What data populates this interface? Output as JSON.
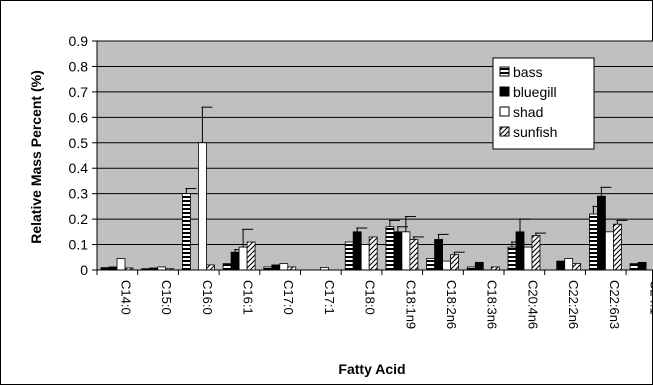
{
  "chart_data": {
    "type": "bar",
    "title": "",
    "xlabel": "Fatty Acid",
    "ylabel": "Relative Mass Percent (%)",
    "ylim": [
      0,
      0.9
    ],
    "yticks": [
      "0",
      "0.1",
      "0.2",
      "0.3",
      "0.4",
      "0.5",
      "0.6",
      "0.7",
      "0.8",
      "0.9"
    ],
    "grid": "horizontal",
    "legend_position": "top-right",
    "categories": [
      "C14:0",
      "C15:0",
      "C16:0",
      "C16:1",
      "C17:0",
      "C17:1",
      "C18:0",
      "C18:1n9",
      "C18:2n6",
      "C18:3n6",
      "C20:4n6",
      "C22:2n6",
      "C22:6n3",
      "C24:1"
    ],
    "series": [
      {
        "name": "bass",
        "values": [
          0.01,
          0.005,
          0.3,
          0.025,
          0.012,
          0.0,
          0.11,
          0.17,
          0.045,
          0.012,
          0.09,
          0.0,
          0.22,
          0.025
        ],
        "errors": [
          0.0,
          0.0,
          0.02,
          0.0,
          0.0,
          0.0,
          0.0,
          0.025,
          0.0,
          0.0,
          0.02,
          0.0,
          0.03,
          0.0
        ]
      },
      {
        "name": "bluegill",
        "values": [
          0.012,
          0.008,
          0.0,
          0.07,
          0.02,
          0.0,
          0.15,
          0.15,
          0.12,
          0.03,
          0.15,
          0.035,
          0.29,
          0.03
        ],
        "errors": [
          0.0,
          0.0,
          0.0,
          0.01,
          0.0,
          0.0,
          0.015,
          0.02,
          0.02,
          0.0,
          0.05,
          0.0,
          0.035,
          0.0
        ]
      },
      {
        "name": "shad",
        "values": [
          0.045,
          0.012,
          0.5,
          0.09,
          0.025,
          0.01,
          0.1,
          0.15,
          0.035,
          0.0,
          0.09,
          0.045,
          0.15,
          0.0
        ],
        "errors": [
          0.0,
          0.0,
          0.14,
          0.07,
          0.0,
          0.0,
          0.0,
          0.06,
          0.0,
          0.0,
          0.0,
          0.0,
          0.0,
          0.0
        ]
      },
      {
        "name": "sunfish",
        "values": [
          0.008,
          0.005,
          0.02,
          0.11,
          0.012,
          0.0,
          0.13,
          0.12,
          0.06,
          0.012,
          0.135,
          0.025,
          0.18,
          0.0
        ],
        "errors": [
          0.0,
          0.0,
          0.0,
          0.0,
          0.0,
          0.0,
          0.0,
          0.01,
          0.01,
          0.0,
          0.01,
          0.0,
          0.015,
          0.0
        ]
      }
    ]
  },
  "colors": {
    "plot_background": "#c0c0c0",
    "gridline": "#000000",
    "bluegill": "#000000",
    "shad": "#ffffff",
    "pattern_ink": "#000000"
  }
}
